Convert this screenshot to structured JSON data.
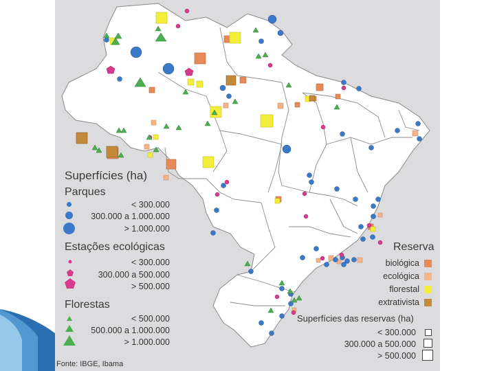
{
  "legend_left": {
    "title": "Superfícies (ha)",
    "parques": {
      "title": "Parques",
      "items": [
        "< 300.000",
        "300.000 a 1.000.000",
        "> 1.000.000"
      ]
    },
    "estacoes": {
      "title": "Estações ecológicas",
      "items": [
        "< 300.000",
        "300.000 a 500.000",
        "> 500.000"
      ]
    },
    "florestas": {
      "title": "Florestas",
      "items": [
        "< 500.000",
        "500.000 a 1.000.000",
        "> 1.000.000"
      ]
    }
  },
  "legend_right": {
    "reserva": {
      "title": "Reserva",
      "items": [
        {
          "label": "biológica",
          "color": "#e8895a"
        },
        {
          "label": "ecológica",
          "color": "#f3b48a"
        },
        {
          "label": "florestal",
          "color": "#f2ee3a"
        },
        {
          "label": "extrativista",
          "color": "#c48a3a"
        }
      ]
    },
    "superficies": {
      "title": "Superfícies das reservas (ha)",
      "items": [
        "< 300.000",
        "300.000 a 500.000",
        "> 500.000"
      ]
    }
  },
  "source": "Fonte: IBGE, Ibama",
  "colors": {
    "parque": "#3a78c8",
    "estacao": "#d63a8c",
    "floresta": "#4caf50",
    "map_fill": "#dcdcdf",
    "country_fill": "#ffffff",
    "border": "#777777"
  }
}
